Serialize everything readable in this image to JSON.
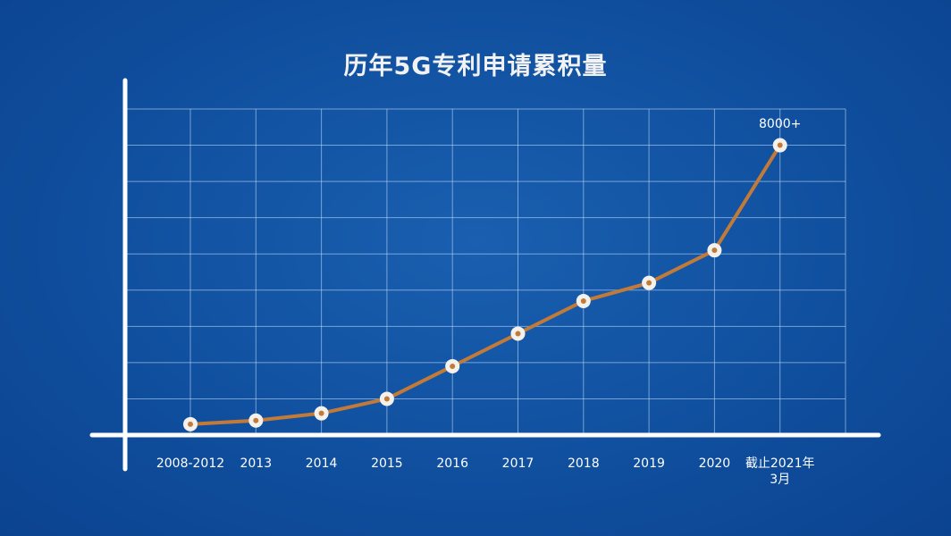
{
  "chart_data": {
    "type": "line",
    "title": "历年5G专利申请累积量",
    "categories": [
      "2008-2012",
      "2013",
      "2014",
      "2015",
      "2016",
      "2017",
      "2018",
      "2019",
      "2020",
      "截止2021年\n3月"
    ],
    "values": [
      300,
      400,
      600,
      1000,
      1900,
      2800,
      3700,
      4200,
      5100,
      8000
    ],
    "value_labels": [
      null,
      null,
      null,
      null,
      null,
      null,
      null,
      null,
      null,
      "8000+"
    ],
    "color": "#c27a38",
    "ylim": [
      0,
      9000
    ],
    "yticks": [
      0,
      1000,
      2000,
      3000,
      4000,
      5000,
      6000,
      7000,
      8000,
      9000
    ],
    "grid": true
  }
}
